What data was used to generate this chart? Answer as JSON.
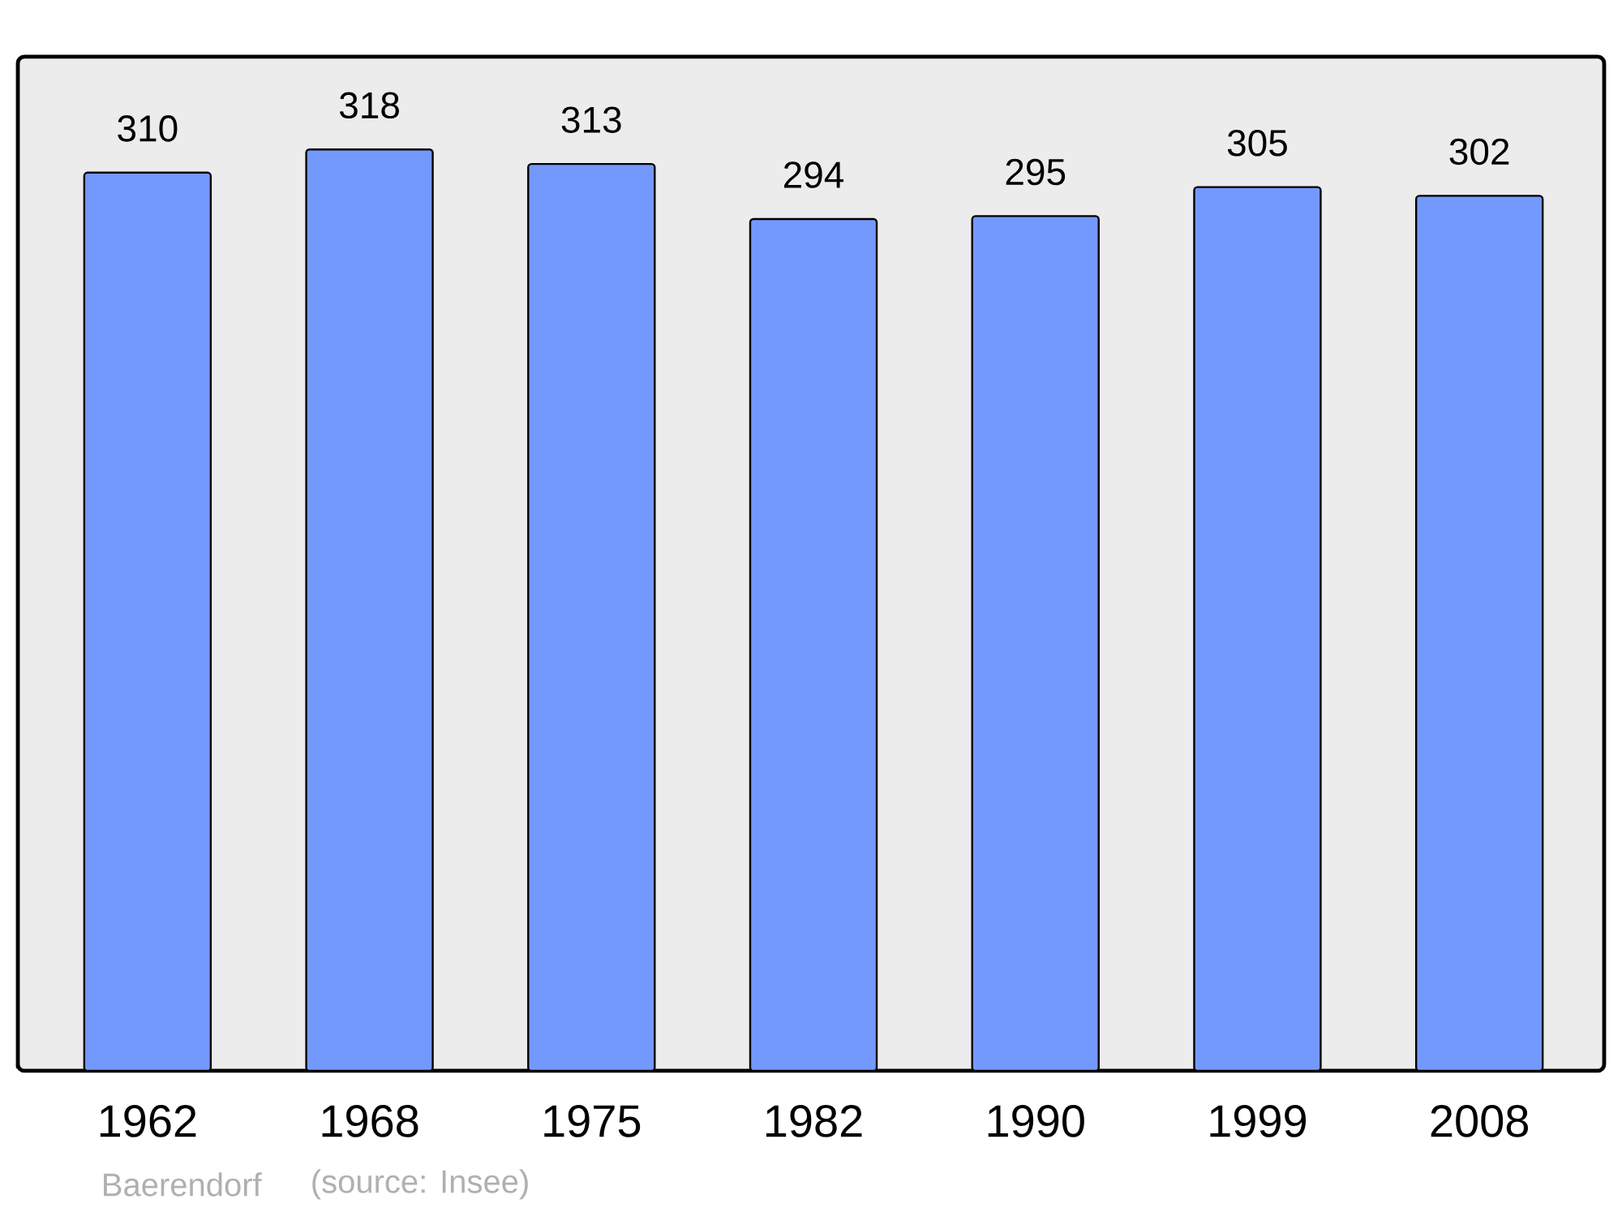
{
  "chart_data": {
    "type": "bar",
    "categories": [
      "1962",
      "1968",
      "1975",
      "1982",
      "1990",
      "1999",
      "2008"
    ],
    "values": [
      310,
      318,
      313,
      294,
      295,
      305,
      302
    ],
    "color": "#7399ff",
    "ylim": [
      0,
      350
    ],
    "data_labels": true,
    "annotations": [
      "Baerendorf",
      "(source: Insee)"
    ]
  }
}
